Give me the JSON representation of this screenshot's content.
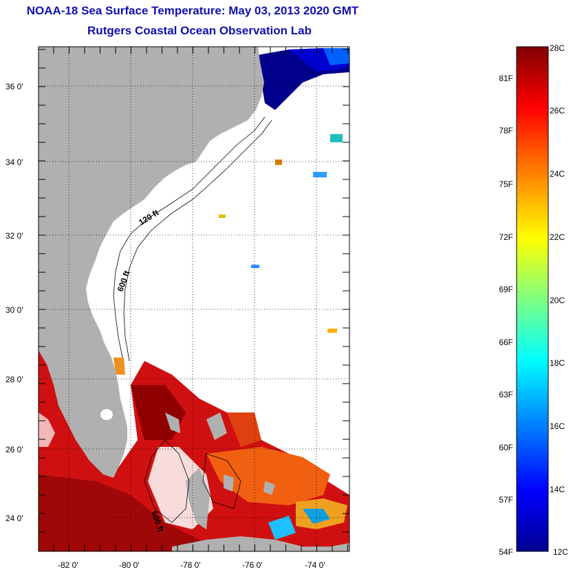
{
  "header": {
    "title": "NOAA-18 Sea Surface Temperature:  May 03, 2013 2020 GMT",
    "subtitle": "Rutgers Coastal Ocean Observation Lab"
  },
  "map": {
    "lat_labels": [
      "36 0'",
      "34 0'",
      "32 0'",
      "30 0'",
      "28 0'",
      "26 0'",
      "24 0'"
    ],
    "lon_labels": [
      "-82 0'",
      "-80 0'",
      "-78 0'",
      "-76 0'",
      "-74 0'"
    ],
    "contour_labels": [
      "120 ft",
      "600 ft",
      "600 ft"
    ],
    "colors": {
      "land": "#b0b0b0",
      "ocean_nodata": "#ffffff",
      "grid": "#000000"
    }
  },
  "colorbar": {
    "celsius_labels": [
      "28C",
      "26C",
      "24C",
      "22C",
      "20C",
      "18C",
      "16C",
      "14C",
      "12C"
    ],
    "fahrenheit_labels": [
      "81F",
      "78F",
      "75F",
      "72F",
      "69F",
      "66F",
      "63F",
      "60F",
      "57F",
      "54F"
    ],
    "colors": [
      "#000090",
      "#0000ff",
      "#0080ff",
      "#00ffff",
      "#80ff80",
      "#ffff00",
      "#ff8000",
      "#ff0000",
      "#800000"
    ]
  }
}
